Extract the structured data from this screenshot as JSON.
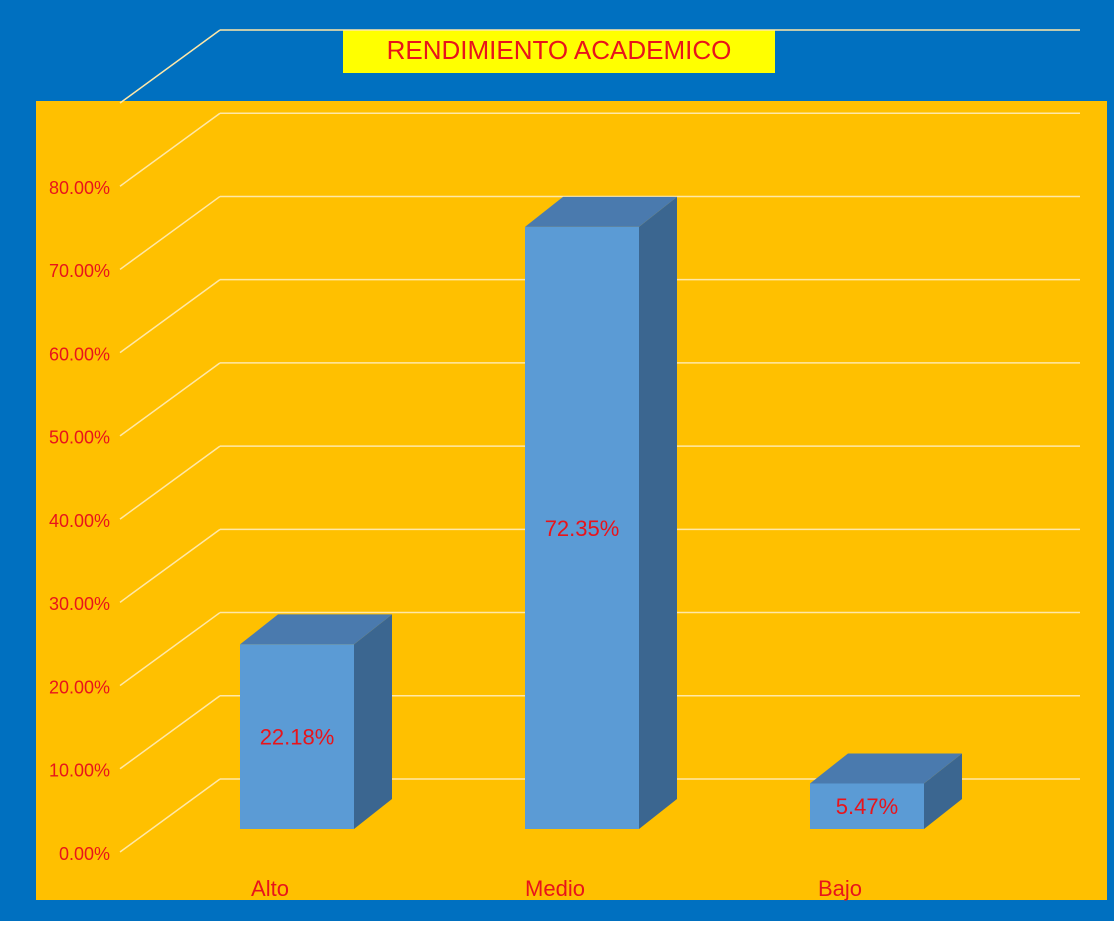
{
  "chart_data": {
    "type": "bar3d",
    "title": "RENDIMIENTO ACADEMICO",
    "categories": [
      "Alto",
      "Medio",
      "Bajo"
    ],
    "values": [
      22.18,
      72.35,
      5.47
    ],
    "value_labels": [
      "22.18%",
      "72.35%",
      "5.47%"
    ],
    "color": "#5B9BD5",
    "ylim": [
      0,
      90
    ],
    "yticks": [
      {
        "value": 0,
        "label": "0.00%"
      },
      {
        "value": 10,
        "label": "10.00%"
      },
      {
        "value": 20,
        "label": "20.00%"
      },
      {
        "value": 30,
        "label": "30.00%"
      },
      {
        "value": 40,
        "label": "40.00%"
      },
      {
        "value": 50,
        "label": "50.00%"
      },
      {
        "value": 60,
        "label": "60.00%"
      },
      {
        "value": 70,
        "label": "70.00%"
      },
      {
        "value": 80,
        "label": "80.00%"
      }
    ],
    "grid": true
  }
}
